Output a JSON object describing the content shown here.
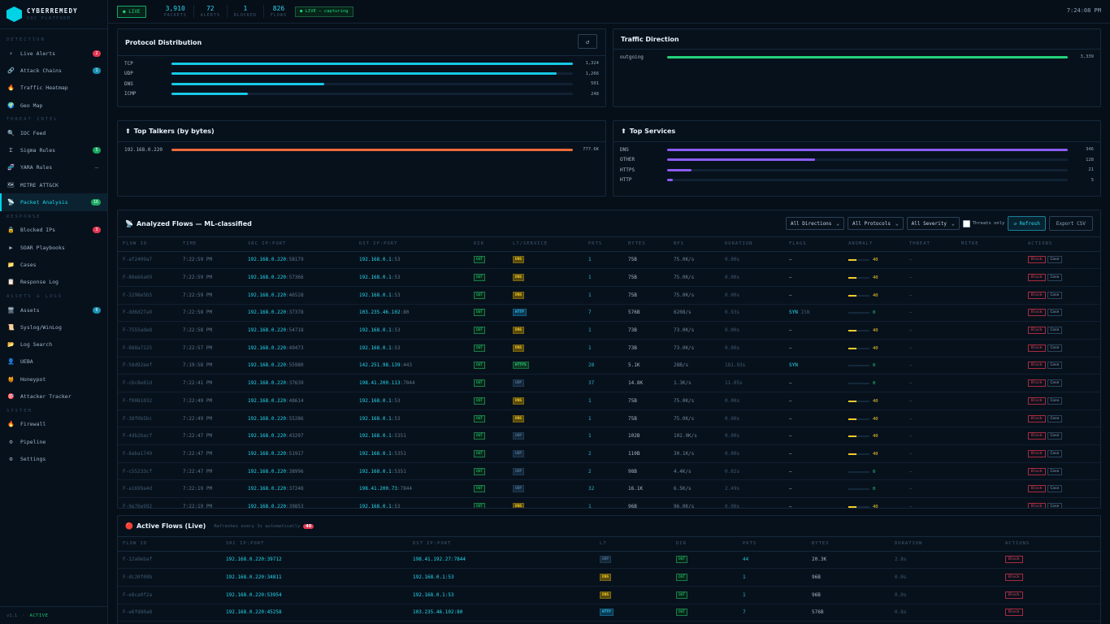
{
  "brand": {
    "name": "CYBERREMEDY",
    "sub": "SOC PLATFORM"
  },
  "sidebar": {
    "sections": [
      {
        "title": "DETECTION",
        "items": [
          {
            "icon": "⚡",
            "label": "Live Alerts",
            "badge": "2",
            "badge_color": "red",
            "active": false
          },
          {
            "icon": "🔗",
            "label": "Attack Chains",
            "badge": "1",
            "badge_color": "cyan",
            "active": false
          },
          {
            "icon": "🔥",
            "label": "Traffic Heatmap",
            "badge": "",
            "badge_color": "",
            "active": false
          },
          {
            "icon": "🌍",
            "label": "Geo Map",
            "badge": "",
            "badge_color": "",
            "active": false
          }
        ]
      },
      {
        "title": "THREAT INTEL",
        "items": [
          {
            "icon": "🔍",
            "label": "IOC Feed",
            "badge": "",
            "badge_color": "",
            "active": false
          },
          {
            "icon": "Σ",
            "label": "Sigma Rules",
            "badge": "5",
            "badge_color": "green",
            "active": false
          },
          {
            "icon": "🧬",
            "label": "YARA Rules",
            "badge": "—",
            "badge_color": "dash",
            "active": false
          },
          {
            "icon": "🗺",
            "label": "MITRE ATT&CK",
            "badge": "",
            "badge_color": "",
            "active": false
          },
          {
            "icon": "📡",
            "label": "Packet Analysis",
            "badge": "16",
            "badge_color": "green",
            "active": true
          }
        ]
      },
      {
        "title": "RESPONSE",
        "items": [
          {
            "icon": "🔒",
            "label": "Blocked IPs",
            "badge": "3",
            "badge_color": "red",
            "active": false
          },
          {
            "icon": "▶",
            "label": "SOAR Playbooks",
            "badge": "",
            "badge_color": "",
            "active": false
          },
          {
            "icon": "📁",
            "label": "Cases",
            "badge": "",
            "badge_color": "",
            "active": false
          },
          {
            "icon": "📋",
            "label": "Response Log",
            "badge": "",
            "badge_color": "",
            "active": false
          }
        ]
      },
      {
        "title": "ASSETS & LOGS",
        "items": [
          {
            "icon": "🖥",
            "label": "Assets",
            "badge": "6",
            "badge_color": "cyan",
            "active": false
          },
          {
            "icon": "📜",
            "label": "Syslog/WinLog",
            "badge": "",
            "badge_color": "",
            "active": false
          },
          {
            "icon": "📂",
            "label": "Log Search",
            "badge": "",
            "badge_color": "",
            "active": false
          },
          {
            "icon": "👤",
            "label": "UEBA",
            "badge": "",
            "badge_color": "",
            "active": false
          },
          {
            "icon": "🍯",
            "label": "Honeypot",
            "badge": "",
            "badge_color": "",
            "active": false
          },
          {
            "icon": "🎯",
            "label": "Attacker Tracker",
            "badge": "",
            "badge_color": "",
            "active": false
          }
        ]
      },
      {
        "title": "SYSTEM",
        "items": [
          {
            "icon": "🔥",
            "label": "Firewall",
            "badge": "",
            "badge_color": "",
            "active": false
          },
          {
            "icon": "⚙",
            "label": "Pipeline",
            "badge": "",
            "badge_color": "",
            "active": false
          },
          {
            "icon": "⚙",
            "label": "Settings",
            "badge": "",
            "badge_color": "",
            "active": false
          }
        ]
      }
    ],
    "footer": {
      "version": "v1.1",
      "sep": "·",
      "status": "ACTIVE"
    }
  },
  "topbar": {
    "live_label": "● LIVE",
    "stats": [
      {
        "value": "3,910",
        "label": "PACKETS"
      },
      {
        "value": "72",
        "label": "ALERTS"
      },
      {
        "value": "1",
        "label": "BLOCKED"
      },
      {
        "value": "826",
        "label": "FLOWS"
      }
    ],
    "capture": "● LIVE — capturing",
    "clock": "7:24:08 PM"
  },
  "protocol": {
    "title": "Protocol Distribution",
    "refresh_icon": "↺",
    "rows": [
      {
        "label": "TCP",
        "value": "1,324",
        "pct": 100,
        "color": "#17c9e6"
      },
      {
        "label": "UDP",
        "value": "1,266",
        "pct": 96,
        "color": "#17c9e6"
      },
      {
        "label": "DNS",
        "value": "501",
        "pct": 38,
        "color": "#17c9e6"
      },
      {
        "label": "ICMP",
        "value": "248",
        "pct": 19,
        "color": "#17c9e6"
      }
    ]
  },
  "direction": {
    "title": "Traffic Direction",
    "rows": [
      {
        "label": "outgoing",
        "value": "3,339",
        "pct": 100,
        "color": "#22d37b"
      }
    ]
  },
  "talkers": {
    "icon": "⬆",
    "title": "Top Talkers (by bytes)",
    "rows": [
      {
        "label": "192.168.0.220",
        "value": "777.6K",
        "pct": 100,
        "color": "#ee6a3a"
      }
    ]
  },
  "services": {
    "icon": "⬆",
    "title": "Top Services",
    "rows": [
      {
        "label": "DNS",
        "value": "346",
        "pct": 100,
        "color": "#8b5cf6"
      },
      {
        "label": "OTHER",
        "value": "128",
        "pct": 37,
        "color": "#8b5cf6"
      },
      {
        "label": "HTTPS",
        "value": "21",
        "pct": 6,
        "color": "#8b5cf6"
      },
      {
        "label": "HTTP",
        "value": "5",
        "pct": 1.4,
        "color": "#8b5cf6"
      }
    ]
  },
  "flows": {
    "icon": "📡",
    "title": "Analyzed Flows — ML-classified",
    "filters": [
      "All Directions",
      "All Protocols",
      "All Severity"
    ],
    "threats_only": "Threats only",
    "refresh": "↺ Refresh",
    "export": "Export CSV",
    "columns": [
      "FLOW ID",
      "TIME",
      "SRC IP:PORT",
      "DST IP:PORT",
      "DIR",
      "L7/SERVICE",
      "PKTS",
      "BYTES",
      "BPS",
      "DURATION",
      "FLAGS",
      "ANOMALY",
      "THREAT",
      "MITRE",
      "ACTIONS"
    ],
    "rows": [
      {
        "id": "F-af2409a7",
        "time": "7:22:59 PM",
        "src": "192.168.0.220",
        "sport": ":58179",
        "dst": "192.168.0.1",
        "dport": ":53",
        "dir": "OUT",
        "svc": "DNS",
        "pkts": "1",
        "bytes": "75B",
        "bps": "75.0K/s",
        "dur": "0.00s",
        "flags": "—",
        "flag_n": "",
        "anom": 40,
        "threat": "—",
        "mitre": ""
      },
      {
        "id": "F-80e66a09",
        "time": "7:22:59 PM",
        "src": "192.168.0.220",
        "sport": ":57366",
        "dst": "192.168.0.1",
        "dport": ":53",
        "dir": "OUT",
        "svc": "DNS",
        "pkts": "1",
        "bytes": "75B",
        "bps": "75.0K/s",
        "dur": "0.00s",
        "flags": "—",
        "flag_n": "",
        "anom": 40,
        "threat": "—",
        "mitre": ""
      },
      {
        "id": "F-3298e5b5",
        "time": "7:22:59 PM",
        "src": "192.168.0.220",
        "sport": ":46528",
        "dst": "192.168.0.1",
        "dport": ":53",
        "dir": "OUT",
        "svc": "DNS",
        "pkts": "1",
        "bytes": "75B",
        "bps": "75.0K/s",
        "dur": "0.00s",
        "flags": "—",
        "flag_n": "",
        "anom": 40,
        "threat": "—",
        "mitre": ""
      },
      {
        "id": "F-dd6d27a9",
        "time": "7:22:58 PM",
        "src": "192.168.0.220",
        "sport": ":37378",
        "dst": "103.235.46.102",
        "dport": ":80",
        "dir": "OUT",
        "svc": "HTTP",
        "pkts": "7",
        "bytes": "576B",
        "bps": "6208/s",
        "dur": "0.93s",
        "flags": "SYN",
        "flag_n": "ISN",
        "anom": 0,
        "threat": "—",
        "mitre": ""
      },
      {
        "id": "F-7555ade8",
        "time": "7:22:58 PM",
        "src": "192.168.0.220",
        "sport": ":54718",
        "dst": "192.168.0.1",
        "dport": ":53",
        "dir": "OUT",
        "svc": "DNS",
        "pkts": "1",
        "bytes": "73B",
        "bps": "73.0K/s",
        "dur": "0.00s",
        "flags": "—",
        "flag_n": "",
        "anom": 40,
        "threat": "—",
        "mitre": ""
      },
      {
        "id": "F-888a7225",
        "time": "7:22:57 PM",
        "src": "192.168.0.220",
        "sport": ":49473",
        "dst": "192.168.0.1",
        "dport": ":53",
        "dir": "OUT",
        "svc": "DNS",
        "pkts": "1",
        "bytes": "73B",
        "bps": "73.0K/s",
        "dur": "0.00s",
        "flags": "—",
        "flag_n": "",
        "anom": 40,
        "threat": "—",
        "mitre": ""
      },
      {
        "id": "F-58d92eef",
        "time": "7:19:58 PM",
        "src": "192.168.0.220",
        "sport": ":55980",
        "dst": "142.251.98.139",
        "dport": ":443",
        "dir": "OUT",
        "svc": "HTTPS",
        "pkts": "28",
        "bytes": "5.1K",
        "bps": "28B/s",
        "dur": "181.03s",
        "flags": "SYN",
        "flag_n": "",
        "anom": 0,
        "threat": "—",
        "mitre": ""
      },
      {
        "id": "F-cbc8e81d",
        "time": "7:22:41 PM",
        "src": "192.168.0.220",
        "sport": ":37639",
        "dst": "198.41.200.113",
        "dport": ":7844",
        "dir": "OUT",
        "svc": "UDP",
        "pkts": "37",
        "bytes": "14.8K",
        "bps": "1.3K/s",
        "dur": "11.05s",
        "flags": "—",
        "flag_n": "",
        "anom": 0,
        "threat": "—",
        "mitre": ""
      },
      {
        "id": "F-f0081032",
        "time": "7:22:49 PM",
        "src": "192.168.0.220",
        "sport": ":48614",
        "dst": "192.168.0.1",
        "dport": ":53",
        "dir": "OUT",
        "svc": "DNS",
        "pkts": "1",
        "bytes": "75B",
        "bps": "75.0K/s",
        "dur": "0.00s",
        "flags": "—",
        "flag_n": "",
        "anom": 40,
        "threat": "—",
        "mitre": ""
      },
      {
        "id": "F-38f0b5bc",
        "time": "7:22:49 PM",
        "src": "192.168.0.220",
        "sport": ":55286",
        "dst": "192.168.0.1",
        "dport": ":53",
        "dir": "OUT",
        "svc": "DNS",
        "pkts": "1",
        "bytes": "75B",
        "bps": "75.0K/s",
        "dur": "0.00s",
        "flags": "—",
        "flag_n": "",
        "anom": 40,
        "threat": "—",
        "mitre": ""
      },
      {
        "id": "F-4db2bacf",
        "time": "7:22:47 PM",
        "src": "192.168.0.220",
        "sport": ":43297",
        "dst": "192.168.0.1",
        "dport": ":5351",
        "dir": "OUT",
        "svc": "UDP",
        "pkts": "1",
        "bytes": "102B",
        "bps": "102.0K/s",
        "dur": "0.00s",
        "flags": "—",
        "flag_n": "",
        "anom": 40,
        "threat": "—",
        "mitre": ""
      },
      {
        "id": "F-8aba1749",
        "time": "7:22:47 PM",
        "src": "192.168.0.220",
        "sport": ":51917",
        "dst": "192.168.0.1",
        "dport": ":5351",
        "dir": "OUT",
        "svc": "UDP",
        "pkts": "2",
        "bytes": "110B",
        "bps": "30.1K/s",
        "dur": "0.00s",
        "flags": "—",
        "flag_n": "",
        "anom": 40,
        "threat": "—",
        "mitre": ""
      },
      {
        "id": "F-c55233cf",
        "time": "7:22:47 PM",
        "src": "192.168.0.220",
        "sport": ":38996",
        "dst": "192.168.0.1",
        "dport": ":5351",
        "dir": "OUT",
        "svc": "UDP",
        "pkts": "2",
        "bytes": "98B",
        "bps": "4.4K/s",
        "dur": "0.02s",
        "flags": "—",
        "flag_n": "",
        "anom": 0,
        "threat": "—",
        "mitre": ""
      },
      {
        "id": "F-a1699a4d",
        "time": "7:22:19 PM",
        "src": "192.168.0.220",
        "sport": ":37248",
        "dst": "198.41.200.73",
        "dport": ":7844",
        "dir": "OUT",
        "svc": "UDP",
        "pkts": "32",
        "bytes": "16.1K",
        "bps": "6.5K/s",
        "dur": "2.49s",
        "flags": "—",
        "flag_n": "",
        "anom": 0,
        "threat": "—",
        "mitre": ""
      },
      {
        "id": "F-9e70e992",
        "time": "7:22:19 PM",
        "src": "192.168.0.220",
        "sport": ":39853",
        "dst": "192.168.0.1",
        "dport": ":53",
        "dir": "OUT",
        "svc": "DNS",
        "pkts": "1",
        "bytes": "96B",
        "bps": "96.0K/s",
        "dur": "0.00s",
        "flags": "—",
        "flag_n": "",
        "anom": 40,
        "threat": "—",
        "mitre": ""
      }
    ],
    "action_block": "Block",
    "action_case": "Case"
  },
  "active": {
    "icon": "🔴",
    "title": "Active Flows (Live)",
    "note": "Refreshes every 3s automatically",
    "count": "40",
    "columns": [
      "FLOW ID",
      "SRC IP:PORT",
      "DST IP:PORT",
      "L7",
      "DIR",
      "PKTS",
      "BYTES",
      "DURATION",
      "ACTIONS"
    ],
    "rows": [
      {
        "id": "F-12a9ebaf",
        "src": "192.168.0.220:39712",
        "dst": "198.41.192.27:7844",
        "l7": "UDP",
        "dir": "OUT",
        "pkts": "44",
        "bytes": "20.3K",
        "dur": "2.8s"
      },
      {
        "id": "F-dc20f09b",
        "src": "192.168.0.220:34811",
        "dst": "192.168.0.1:53",
        "l7": "DNS",
        "dir": "OUT",
        "pkts": "1",
        "bytes": "96B",
        "dur": "0.0s"
      },
      {
        "id": "F-e8ca0f2a",
        "src": "192.168.0.220:53954",
        "dst": "192.168.0.1:53",
        "l7": "DNS",
        "dir": "OUT",
        "pkts": "1",
        "bytes": "96B",
        "dur": "0.0s"
      },
      {
        "id": "F-e6fd80a8",
        "src": "192.168.0.220:45258",
        "dst": "103.235.46.102:80",
        "l7": "HTTP",
        "dir": "OUT",
        "pkts": "7",
        "bytes": "576B",
        "dur": "0.8s"
      }
    ],
    "action_block": "Block"
  }
}
